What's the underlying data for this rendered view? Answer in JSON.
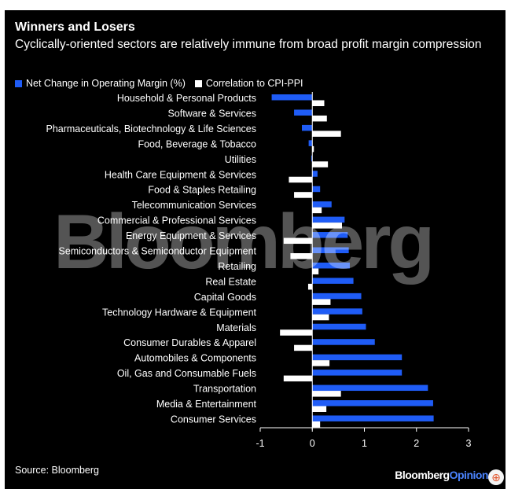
{
  "header": {
    "title": "Winners and Losers",
    "subtitle": "Cyclically-oriented sectors are relatively immune from broad profit margin compression"
  },
  "legend": {
    "series1": "Net Change in Operating Margin (%)",
    "series2": "Correlation to CPI-PPI"
  },
  "watermark": "Bloomberg",
  "footer": {
    "source": "Source: Bloomberg",
    "brand_main": "Bloomberg",
    "brand_accent": "Opinion"
  },
  "colors": {
    "series1": "#1f5cf6",
    "series2": "#ffffff",
    "background": "#000000",
    "text": "#ffffff"
  },
  "chart_data": {
    "type": "bar",
    "orientation": "horizontal",
    "title": "Winners and Losers",
    "subtitle": "Cyclically-oriented sectors are relatively immune from broad profit margin compression",
    "categories": [
      "Household & Personal Products",
      "Software & Services",
      "Pharmaceuticals, Biotechnology & Life Sciences",
      "Food, Beverage & Tobacco",
      "Utilities",
      "Health Care Equipment & Services",
      "Food & Staples Retailing",
      "Telecommunication Services",
      "Commercial & Professional Services",
      "Energy Equipment & Services",
      "Semiconductors & Semiconductor Equipment",
      "Retailing",
      "Real Estate",
      "Capital Goods",
      "Technology Hardware & Equipment",
      "Materials",
      "Consumer Durables & Apparel",
      "Automobiles & Components",
      "Oil, Gas and Consumable Fuels",
      "Transportation",
      "Media & Entertainment",
      "Consumer Services"
    ],
    "series": [
      {
        "name": "Net Change in Operating Margin (%)",
        "values": [
          -0.78,
          -0.35,
          -0.2,
          -0.07,
          -0.02,
          0.1,
          0.15,
          0.37,
          0.62,
          0.68,
          0.7,
          0.72,
          0.79,
          0.94,
          0.96,
          1.03,
          1.2,
          1.72,
          1.72,
          2.22,
          2.32,
          2.33
        ]
      },
      {
        "name": "Correlation to CPI-PPI",
        "values": [
          0.23,
          0.28,
          0.55,
          0.03,
          0.3,
          -0.45,
          -0.35,
          0.18,
          0.57,
          -0.55,
          -0.42,
          0.12,
          -0.08,
          0.35,
          0.32,
          -0.62,
          -0.35,
          0.33,
          -0.55,
          0.55,
          0.27,
          0.15
        ]
      }
    ],
    "xlim": [
      -1,
      3
    ],
    "xticks": [
      "-1",
      "0",
      "1",
      "2",
      "3"
    ],
    "xlabel": "",
    "ylabel": "",
    "legend_position": "top-left"
  }
}
